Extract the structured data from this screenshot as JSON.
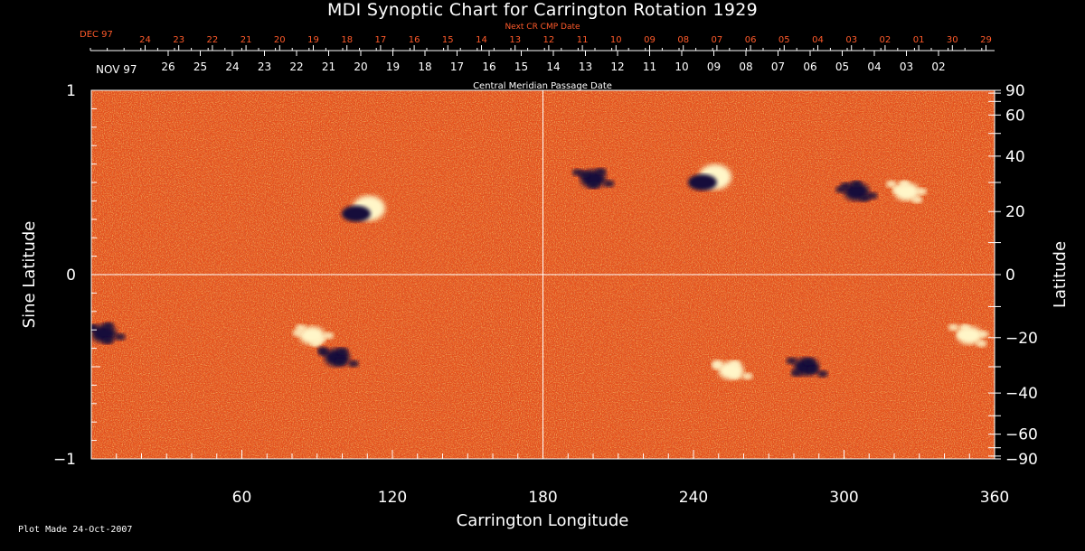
{
  "title": "MDI Synoptic Chart for Carrington Rotation 1929",
  "footer": "Plot Made 24-Oct-2007",
  "colors": {
    "background": "#000000",
    "map_base": "#e8501a",
    "text": "#ffffff",
    "top_red": "#ff5a2a"
  },
  "chart_data": {
    "type": "heatmap",
    "title": "MDI Synoptic Chart for Carrington Rotation 1929",
    "xlabel": "Carrington Longitude",
    "ylabel_left": "Sine Latitude",
    "ylabel_right": "Latitude",
    "xlim": [
      0,
      360
    ],
    "ylim": [
      -1,
      1
    ],
    "x_ticks": [
      60,
      120,
      180,
      240,
      300,
      360
    ],
    "y_ticks_left": [
      1,
      0,
      -1
    ],
    "y_tick_labels_left": [
      "1",
      "0",
      "−1"
    ],
    "y_ticks_right": [
      90,
      60,
      40,
      20,
      0,
      -20,
      -40,
      -60,
      -90
    ],
    "y_tick_labels_right": [
      "90",
      "60",
      "40",
      "20",
      "0",
      "−20",
      "−40",
      "−60",
      "−90"
    ],
    "top_axis_red": {
      "label": "Next CR CMP Date",
      "month_label": "DEC 97",
      "ticks": [
        "24",
        "23",
        "22",
        "21",
        "20",
        "19",
        "18",
        "17",
        "16",
        "15",
        "14",
        "13",
        "12",
        "11",
        "10",
        "09",
        "08",
        "07",
        "06",
        "05",
        "04",
        "03",
        "02",
        "01",
        "30",
        "29"
      ]
    },
    "top_axis_white": {
      "label": "Central Meridian Passage Date",
      "month_label": "NOV 97",
      "ticks": [
        "26",
        "25",
        "24",
        "23",
        "22",
        "21",
        "20",
        "19",
        "18",
        "17",
        "16",
        "15",
        "14",
        "13",
        "12",
        "11",
        "10",
        "09",
        "08",
        "07",
        "06",
        "05",
        "04",
        "03",
        "02"
      ]
    },
    "gridlines": {
      "longitude": [
        180
      ],
      "sine_latitude": [
        0
      ]
    },
    "colorbar": "none",
    "regions": [
      {
        "lon": 107,
        "sinlat": 0.35,
        "polarity": "mixed"
      },
      {
        "lon": 88,
        "sinlat": -0.33,
        "polarity": "positive"
      },
      {
        "lon": 98,
        "sinlat": -0.45,
        "polarity": "negative"
      },
      {
        "lon": 200,
        "sinlat": 0.52,
        "polarity": "negative"
      },
      {
        "lon": 245,
        "sinlat": 0.52,
        "polarity": "mixed"
      },
      {
        "lon": 305,
        "sinlat": 0.45,
        "polarity": "negative"
      },
      {
        "lon": 325,
        "sinlat": 0.45,
        "polarity": "positive"
      },
      {
        "lon": 350,
        "sinlat": -0.33,
        "polarity": "positive"
      },
      {
        "lon": 5,
        "sinlat": -0.32,
        "polarity": "negative"
      },
      {
        "lon": 285,
        "sinlat": -0.5,
        "polarity": "negative"
      },
      {
        "lon": 255,
        "sinlat": -0.52,
        "polarity": "positive"
      }
    ]
  }
}
